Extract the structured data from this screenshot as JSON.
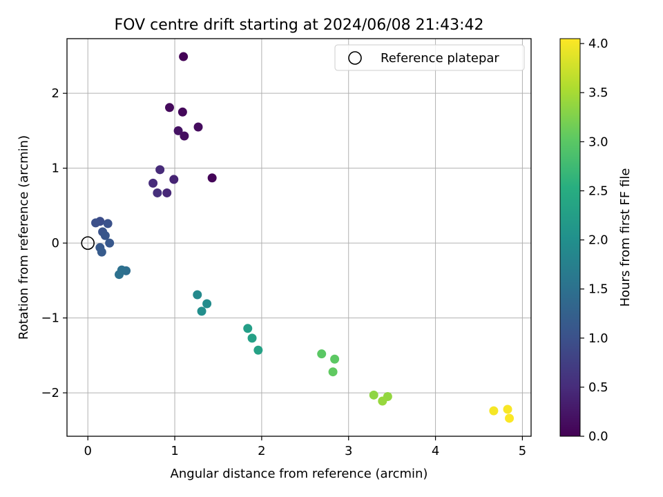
{
  "chart_data": {
    "type": "scatter",
    "title": "FOV centre drift starting at 2024/06/08 21:43:42",
    "xlabel": "Angular distance from reference (arcmin)",
    "ylabel": "Rotation from reference (arcmin)",
    "xlim": [
      -0.24,
      5.1
    ],
    "ylim": [
      -2.58,
      2.73
    ],
    "xticks": [
      0,
      1,
      2,
      3,
      4,
      5
    ],
    "yticks": [
      -2,
      -1,
      0,
      1,
      2
    ],
    "grid": true,
    "legend": {
      "placement": "top-right",
      "entries": [
        "Reference platepar"
      ]
    },
    "reference_point": {
      "x": 0,
      "y": 0,
      "label": "Reference platepar"
    },
    "colorbar": {
      "label": "Hours from first FF file",
      "colormap": "viridis",
      "range": [
        0,
        4.05
      ],
      "ticks": [
        "0.0",
        "0.5",
        "1.0",
        "1.5",
        "2.0",
        "2.5",
        "3.0",
        "3.5",
        "4.0"
      ]
    },
    "points": [
      {
        "x": 1.1,
        "y": 2.49,
        "t": 0.02
      },
      {
        "x": 1.43,
        "y": 0.87,
        "t": 0.05
      },
      {
        "x": 1.09,
        "y": 1.75,
        "t": 0.08
      },
      {
        "x": 0.94,
        "y": 1.81,
        "t": 0.1
      },
      {
        "x": 1.27,
        "y": 1.55,
        "t": 0.13
      },
      {
        "x": 1.11,
        "y": 1.43,
        "t": 0.16
      },
      {
        "x": 1.04,
        "y": 1.5,
        "t": 0.19
      },
      {
        "x": 0.99,
        "y": 0.85,
        "t": 0.4
      },
      {
        "x": 0.91,
        "y": 0.67,
        "t": 0.45
      },
      {
        "x": 0.83,
        "y": 0.98,
        "t": 0.48
      },
      {
        "x": 0.75,
        "y": 0.8,
        "t": 0.5
      },
      {
        "x": 0.8,
        "y": 0.67,
        "t": 0.55
      },
      {
        "x": 0.14,
        "y": 0.29,
        "t": 0.95
      },
      {
        "x": 0.09,
        "y": 0.27,
        "t": 0.98
      },
      {
        "x": 0.23,
        "y": 0.26,
        "t": 1.02
      },
      {
        "x": 0.17,
        "y": 0.15,
        "t": 1.05
      },
      {
        "x": 0.2,
        "y": 0.1,
        "t": 1.08
      },
      {
        "x": 0.25,
        "y": 0.0,
        "t": 1.1
      },
      {
        "x": 0.14,
        "y": -0.06,
        "t": 1.12
      },
      {
        "x": 0.16,
        "y": -0.12,
        "t": 1.15
      },
      {
        "x": 0.44,
        "y": -0.37,
        "t": 1.45
      },
      {
        "x": 0.39,
        "y": -0.36,
        "t": 1.48
      },
      {
        "x": 0.36,
        "y": -0.42,
        "t": 1.5
      },
      {
        "x": 1.26,
        "y": -0.69,
        "t": 1.9
      },
      {
        "x": 1.37,
        "y": -0.81,
        "t": 1.95
      },
      {
        "x": 1.31,
        "y": -0.91,
        "t": 1.97
      },
      {
        "x": 1.84,
        "y": -1.14,
        "t": 2.25
      },
      {
        "x": 1.89,
        "y": -1.27,
        "t": 2.28
      },
      {
        "x": 1.96,
        "y": -1.43,
        "t": 2.3
      },
      {
        "x": 2.69,
        "y": -1.48,
        "t": 3.0
      },
      {
        "x": 2.84,
        "y": -1.55,
        "t": 3.02
      },
      {
        "x": 2.82,
        "y": -1.72,
        "t": 3.05
      },
      {
        "x": 3.29,
        "y": -2.03,
        "t": 3.35
      },
      {
        "x": 3.45,
        "y": -2.05,
        "t": 3.38
      },
      {
        "x": 3.39,
        "y": -2.11,
        "t": 3.4
      },
      {
        "x": 4.67,
        "y": -2.24,
        "t": 4.0
      },
      {
        "x": 4.83,
        "y": -2.22,
        "t": 4.02
      },
      {
        "x": 4.85,
        "y": -2.34,
        "t": 4.04
      }
    ]
  }
}
